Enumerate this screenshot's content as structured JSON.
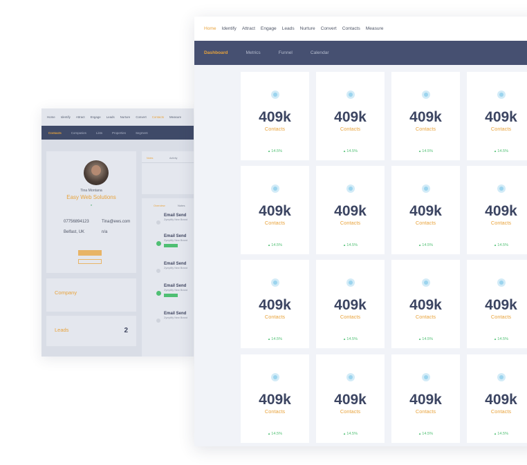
{
  "back": {
    "nav": [
      "Home",
      "Identify",
      "Attract",
      "Engage",
      "Leads",
      "Nurture",
      "Convert",
      "Contacts",
      "Measure"
    ],
    "nav_active": "Contacts",
    "subnav": [
      "Contacts",
      "Companies",
      "Lists",
      "Properties",
      "Segment"
    ],
    "subnav_active": "Contacts",
    "profile": {
      "name": "Tina Montana",
      "company": "Easy Web Solutions",
      "phone": "07756894123",
      "email": "Tina@ews.com",
      "location": "Belfast, UK",
      "other": "n/a"
    },
    "company_card": {
      "title": "Company"
    },
    "leads_card": {
      "title": "Leads",
      "count": "2"
    },
    "notes_tab": "Notes",
    "activity_tab": "Activity",
    "overview_tab": "Overview",
    "activity": [
      {
        "title": "Email Send",
        "desc": "Zymplify New Brand"
      },
      {
        "title": "Email Send",
        "desc": "Zymplify New Brand"
      },
      {
        "title": "Email Send",
        "desc": "Zymplify New Brand"
      },
      {
        "title": "Email Send",
        "desc": "Zymplify New Brand"
      },
      {
        "title": "Email Send",
        "desc": "Zymplify New Brand"
      }
    ]
  },
  "nav": [
    "Home",
    "Identify",
    "Attract",
    "Engage",
    "Leads",
    "Nurture",
    "Convert",
    "Contacts",
    "Measure"
  ],
  "nav_active": "Home",
  "subnav": [
    "Dashboard",
    "Metrics",
    "Funnel",
    "Calendar"
  ],
  "subnav_active": "Dashboard",
  "stat_cards": [
    {
      "value": "409k",
      "label": "Contacts",
      "change": "14.5%"
    },
    {
      "value": "409k",
      "label": "Contacts",
      "change": "14.5%"
    },
    {
      "value": "409k",
      "label": "Contacts",
      "change": "14.5%"
    },
    {
      "value": "409k",
      "label": "Contacts",
      "change": "14.5%"
    },
    {
      "value": "409k",
      "label": "Contacts",
      "change": "14.5%"
    },
    {
      "value": "409k",
      "label": "Contacts",
      "change": "14.5%"
    },
    {
      "value": "409k",
      "label": "Contacts",
      "change": "14.5%"
    },
    {
      "value": "409k",
      "label": "Contacts",
      "change": "14.5%"
    },
    {
      "value": "409k",
      "label": "Contacts",
      "change": "14.5%"
    },
    {
      "value": "409k",
      "label": "Contacts",
      "change": "14.5%"
    },
    {
      "value": "409k",
      "label": "Contacts",
      "change": "14.5%"
    },
    {
      "value": "409k",
      "label": "Contacts",
      "change": "14.5%"
    },
    {
      "value": "409k",
      "label": "Contacts",
      "change": "14.5%"
    },
    {
      "value": "409k",
      "label": "Contacts",
      "change": "14.5%"
    },
    {
      "value": "409k",
      "label": "Contacts",
      "change": "14.5%"
    },
    {
      "value": "409k",
      "label": "Contacts",
      "change": "14.5%"
    }
  ],
  "colors": {
    "accent": "#e8a33c",
    "nav_bg": "#465071",
    "positive": "#4fbf73"
  }
}
